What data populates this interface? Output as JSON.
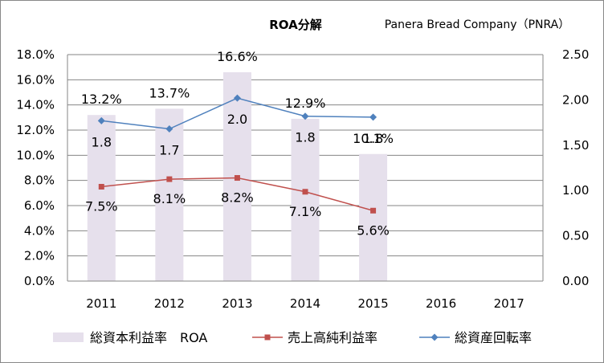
{
  "chart_data": {
    "type": "bar",
    "title": "ROA分解",
    "company": "Panera Bread Company（PNRA）",
    "categories": [
      "2011",
      "2012",
      "2013",
      "2014",
      "2015",
      "2016",
      "2017"
    ],
    "y_left": {
      "min": 0,
      "max": 18,
      "step": 2,
      "ticks": [
        "0.0%",
        "2.0%",
        "4.0%",
        "6.0%",
        "8.0%",
        "10.0%",
        "12.0%",
        "14.0%",
        "16.0%",
        "18.0%"
      ]
    },
    "y_right": {
      "min": 0,
      "max": 2.5,
      "step": 0.5,
      "ticks": [
        "0.00",
        "0.50",
        "1.00",
        "1.50",
        "2.00",
        "2.50"
      ]
    },
    "grid": true,
    "legend_position": "bottom",
    "series": [
      {
        "name": "総資本利益率　ROA",
        "type": "bar",
        "axis": "left",
        "color": "#e6e0ec",
        "values": [
          13.2,
          13.7,
          16.6,
          12.9,
          10.1,
          null,
          null
        ],
        "labels": [
          "13.2%",
          "13.7%",
          "16.6%",
          "12.9%",
          "10.1%",
          "",
          ""
        ]
      },
      {
        "name": "売上高純利益率",
        "type": "line",
        "axis": "left",
        "color": "#c0504d",
        "marker": "square",
        "values": [
          7.5,
          8.1,
          8.2,
          7.1,
          5.6,
          null,
          null
        ],
        "labels": [
          "7.5%",
          "8.1%",
          "8.2%",
          "7.1%",
          "5.6%",
          "",
          ""
        ]
      },
      {
        "name": "総資産回転率",
        "type": "line",
        "axis": "right",
        "color": "#4f81bd",
        "marker": "diamond",
        "values": [
          1.77,
          1.68,
          2.02,
          1.82,
          1.81,
          null,
          null
        ],
        "labels": [
          "1.8",
          "1.7",
          "2.0",
          "1.8",
          "1.8",
          "",
          ""
        ]
      }
    ]
  }
}
